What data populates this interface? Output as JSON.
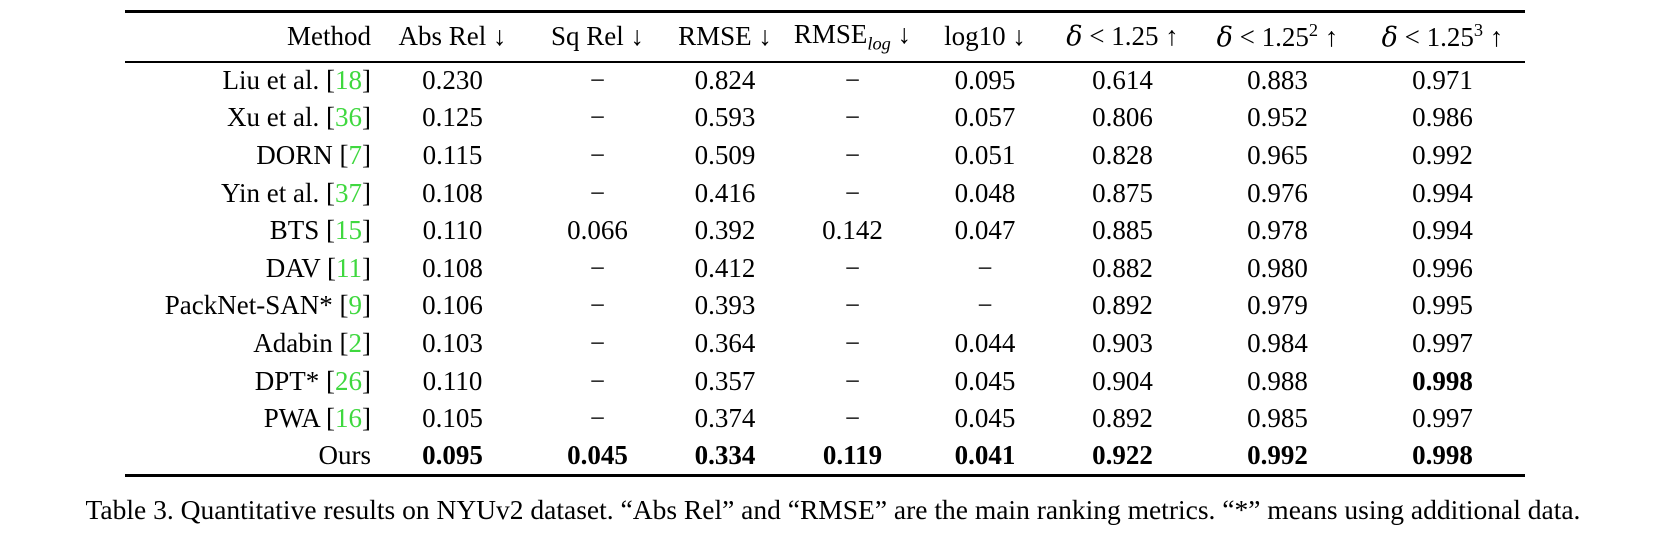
{
  "colors": {
    "citation_green": "#3fd83f",
    "text": "#000000",
    "background": "#ffffff"
  },
  "table": {
    "columns": [
      {
        "text": "Method"
      },
      {
        "text": "Abs Rel",
        "arrow": "↓"
      },
      {
        "text": "Sq Rel",
        "arrow": "↓"
      },
      {
        "text": "RMSE",
        "arrow": "↓"
      },
      {
        "text": "RMSE",
        "sub": "log",
        "arrow": "↓"
      },
      {
        "text": "log10",
        "arrow": "↓"
      },
      {
        "delta": "δ",
        "text": " < 1.25",
        "arrow": "↑"
      },
      {
        "delta": "δ",
        "text": " < 1.25",
        "sup": "2",
        "arrow": "↑"
      },
      {
        "delta": "δ",
        "text": " < 1.25",
        "sup": "3",
        "arrow": "↑"
      }
    ],
    "rows": [
      {
        "method": "Liu et al.",
        "cite": "18",
        "values": [
          "0.230",
          "−",
          "0.824",
          "−",
          "0.095",
          "0.614",
          "0.883",
          "0.971"
        ],
        "bold": []
      },
      {
        "method": "Xu et al.",
        "cite": "36",
        "values": [
          "0.125",
          "−",
          "0.593",
          "−",
          "0.057",
          "0.806",
          "0.952",
          "0.986"
        ],
        "bold": []
      },
      {
        "method": "DORN",
        "cite": "7",
        "values": [
          "0.115",
          "−",
          "0.509",
          "−",
          "0.051",
          "0.828",
          "0.965",
          "0.992"
        ],
        "bold": []
      },
      {
        "method": "Yin et al.",
        "cite": "37",
        "values": [
          "0.108",
          "−",
          "0.416",
          "−",
          "0.048",
          "0.875",
          "0.976",
          "0.994"
        ],
        "bold": []
      },
      {
        "method": "BTS",
        "cite": "15",
        "values": [
          "0.110",
          "0.066",
          "0.392",
          "0.142",
          "0.047",
          "0.885",
          "0.978",
          "0.994"
        ],
        "bold": []
      },
      {
        "method": "DAV",
        "cite": "11",
        "values": [
          "0.108",
          "−",
          "0.412",
          "−",
          "−",
          "0.882",
          "0.980",
          "0.996"
        ],
        "bold": []
      },
      {
        "method": "PackNet-SAN*",
        "cite": "9",
        "values": [
          "0.106",
          "−",
          "0.393",
          "−",
          "−",
          "0.892",
          "0.979",
          "0.995"
        ],
        "bold": []
      },
      {
        "method": "Adabin",
        "cite": "2",
        "values": [
          "0.103",
          "−",
          "0.364",
          "−",
          "0.044",
          "0.903",
          "0.984",
          "0.997"
        ],
        "bold": []
      },
      {
        "method": "DPT*",
        "cite": "26",
        "values": [
          "0.110",
          "−",
          "0.357",
          "−",
          "0.045",
          "0.904",
          "0.988",
          "0.998"
        ],
        "bold": [
          7
        ]
      },
      {
        "method": "PWA",
        "cite": "16",
        "values": [
          "0.105",
          "−",
          "0.374",
          "−",
          "0.045",
          "0.892",
          "0.985",
          "0.997"
        ],
        "bold": []
      },
      {
        "method": "Ours",
        "cite": null,
        "values": [
          "0.095",
          "0.045",
          "0.334",
          "0.119",
          "0.041",
          "0.922",
          "0.992",
          "0.998"
        ],
        "bold": [
          0,
          1,
          2,
          3,
          4,
          5,
          6,
          7
        ]
      }
    ]
  },
  "caption": "Table 3. Quantitative results on NYUv2 dataset. “Abs Rel” and “RMSE” are the main ranking metrics. “*” means using additional data."
}
